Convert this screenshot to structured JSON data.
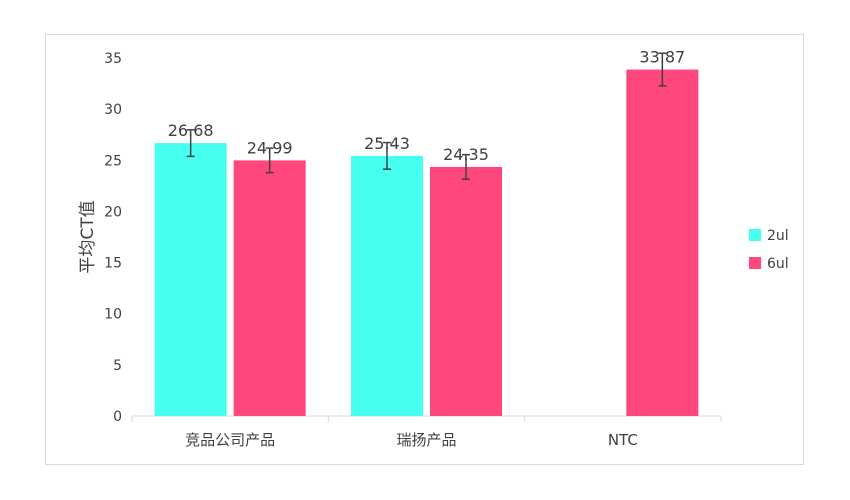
{
  "chart_data": {
    "type": "bar",
    "ylabel": "平均CT值",
    "xlabel": "",
    "ylim": [
      0,
      35
    ],
    "yticks": [
      0,
      5,
      10,
      15,
      20,
      25,
      30,
      35
    ],
    "categories": [
      "竞品公司产品",
      "瑞扬产品",
      "NTC"
    ],
    "grid": false,
    "legend_position": "right",
    "series": [
      {
        "name": "2ul",
        "color": "#47fff0",
        "values": [
          26.68,
          25.43,
          null
        ],
        "errors": [
          1.3,
          1.3,
          null
        ]
      },
      {
        "name": "6ul",
        "color": "#ff477e",
        "values": [
          24.99,
          24.35,
          33.87
        ],
        "errors": [
          1.2,
          1.2,
          1.6
        ]
      }
    ]
  }
}
